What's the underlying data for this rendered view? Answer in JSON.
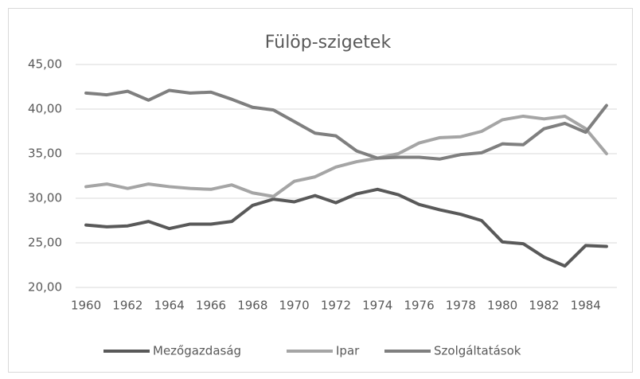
{
  "chart_data": {
    "type": "line",
    "title": "Fülöp-szigetek",
    "x": [
      1960,
      1961,
      1962,
      1963,
      1964,
      1965,
      1966,
      1967,
      1968,
      1969,
      1970,
      1971,
      1972,
      1973,
      1974,
      1975,
      1976,
      1977,
      1978,
      1979,
      1980,
      1981,
      1982,
      1983,
      1984,
      1985
    ],
    "xlim": [
      1959.5,
      1985.5
    ],
    "xticks": [
      1960,
      1962,
      1964,
      1966,
      1968,
      1970,
      1972,
      1974,
      1976,
      1978,
      1980,
      1982,
      1984
    ],
    "ylim": [
      20,
      45
    ],
    "yticks": [
      {
        "value": 20,
        "label": "20,00"
      },
      {
        "value": 25,
        "label": "25,00"
      },
      {
        "value": 30,
        "label": "30,00"
      },
      {
        "value": 35,
        "label": "35,00"
      },
      {
        "value": 40,
        "label": "40,00"
      },
      {
        "value": 45,
        "label": "45,00"
      }
    ],
    "grid": true,
    "legend": "bottom",
    "series": [
      {
        "name": "Mezőgazdaság",
        "color": "#595959",
        "values": [
          27.0,
          26.8,
          26.9,
          27.4,
          26.6,
          27.1,
          27.1,
          27.4,
          29.2,
          29.9,
          29.6,
          30.3,
          29.5,
          30.5,
          31.0,
          30.4,
          29.3,
          28.7,
          28.2,
          27.5,
          25.1,
          24.9,
          23.4,
          22.4,
          24.7,
          24.6
        ]
      },
      {
        "name": "Ipar",
        "color": "#a5a5a5",
        "values": [
          31.3,
          31.6,
          31.1,
          31.6,
          31.3,
          31.1,
          31.0,
          31.5,
          30.6,
          30.2,
          31.9,
          32.4,
          33.5,
          34.1,
          34.5,
          35.0,
          36.2,
          36.8,
          36.9,
          37.5,
          38.8,
          39.2,
          38.9,
          39.2,
          37.8,
          35.0
        ]
      },
      {
        "name": "Szolgáltatások",
        "color": "#7f7f7f",
        "values": [
          41.8,
          41.6,
          42.0,
          41.0,
          42.1,
          41.8,
          41.9,
          41.1,
          40.2,
          39.9,
          38.6,
          37.3,
          37.0,
          35.3,
          34.5,
          34.6,
          34.6,
          34.4,
          34.9,
          35.1,
          36.1,
          36.0,
          37.8,
          38.4,
          37.4,
          40.4
        ]
      }
    ]
  }
}
